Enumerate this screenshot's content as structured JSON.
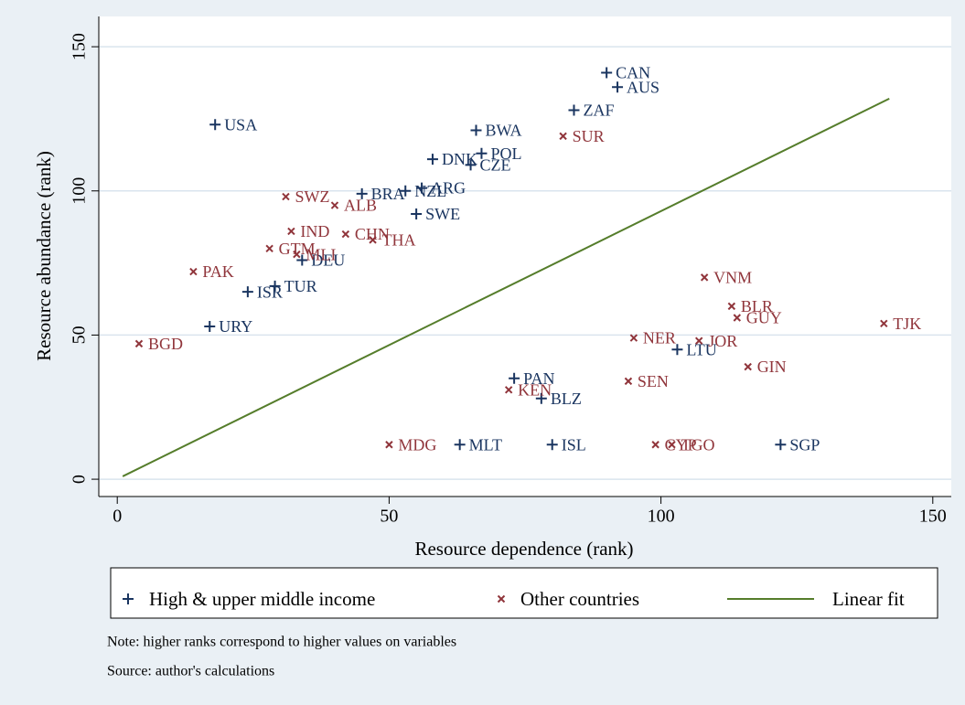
{
  "chart_data": {
    "type": "scatter",
    "xlabel": "Resource dependence (rank)",
    "ylabel": "Resource abundance (rank)",
    "xlim": [
      -3.4,
      153.4
    ],
    "ylim": [
      -6,
      160.5
    ],
    "xticks": [
      0,
      50,
      100,
      150
    ],
    "yticks": [
      0,
      50,
      100,
      150
    ],
    "grid": true,
    "series": [
      {
        "name": "High & upper middle income",
        "color": "#1a3560",
        "marker": "plus",
        "labels": [
          "USA",
          "CAN",
          "AUS",
          "ZAF",
          "BWA",
          "POL",
          "DNK",
          "CZE",
          "ARG",
          "NZL",
          "BRA",
          "SWE",
          "DEU",
          "TUR",
          "ISR",
          "URY",
          "PAN",
          "BLZ",
          "LTU",
          "MLT",
          "ISL",
          "SGP"
        ],
        "x": [
          18,
          90,
          92,
          84,
          66,
          67,
          58,
          65,
          56,
          53,
          45,
          55,
          34,
          29,
          24,
          17,
          73,
          78,
          103,
          63,
          80,
          122
        ],
        "y": [
          123,
          141,
          136,
          128,
          121,
          113,
          111,
          109,
          101,
          100,
          99,
          92,
          76,
          67,
          65,
          53,
          35,
          28,
          45,
          12,
          12,
          12
        ]
      },
      {
        "name": "Other countries",
        "color": "#90353b",
        "marker": "cross",
        "labels": [
          "SUR",
          "SWZ",
          "ALB",
          "IND",
          "CHN",
          "THA",
          "GTM",
          "MLI",
          "PAK",
          "BGD",
          "VNM",
          "BLR",
          "GUY",
          "TJK",
          "NER",
          "JOR",
          "GIN",
          "SEN",
          "KEN",
          "MDG",
          "CYP",
          "TGO"
        ],
        "x": [
          82,
          31,
          40,
          32,
          42,
          47,
          28,
          33,
          14,
          4,
          108,
          113,
          114,
          141,
          95,
          107,
          116,
          94,
          72,
          50,
          99,
          102
        ],
        "y": [
          119,
          98,
          95,
          86,
          85,
          83,
          80,
          78,
          72,
          47,
          70,
          60,
          56,
          54,
          49,
          48,
          39,
          34,
          31,
          12,
          12,
          12
        ]
      }
    ],
    "fit": {
      "name": "Linear fit",
      "color": "#557d2b",
      "x": [
        1,
        142
      ],
      "y": [
        1,
        132
      ]
    },
    "notes": [
      "Note: higher ranks correspond to higher values on variables",
      "Source: author's calculations"
    ]
  }
}
